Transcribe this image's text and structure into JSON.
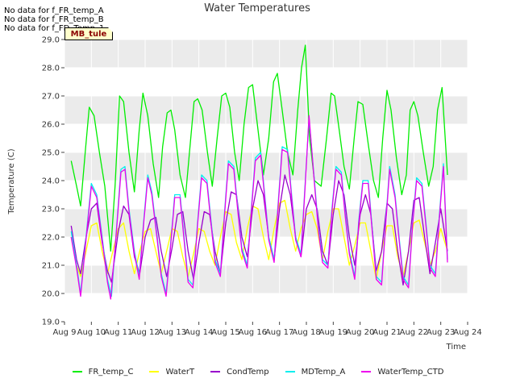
{
  "no_data_messages": [
    "No data for f_FR_temp_A",
    "No data for f_FR_temp_B",
    "No data for f_FD_Temp_1"
  ],
  "site_label": "MB_tule",
  "chart_data": {
    "type": "line",
    "title": "Water Temperatures",
    "xlabel": "Time",
    "ylabel": "Temperature (C)",
    "ylim": [
      19.0,
      29.0
    ],
    "xlim": [
      9,
      24
    ],
    "y_ticks": [
      19.0,
      20.0,
      21.0,
      22.0,
      23.0,
      24.0,
      25.0,
      26.0,
      27.0,
      28.0,
      29.0
    ],
    "x_ticks": [
      "Aug 9",
      "Aug 10",
      "Aug 11",
      "Aug 12",
      "Aug 13",
      "Aug 14",
      "Aug 15",
      "Aug 16",
      "Aug 17",
      "Aug 18",
      "Aug 19",
      "Aug 20",
      "Aug 21",
      "Aug 22",
      "Aug 23",
      "Aug 24"
    ],
    "x_unit": "day of August",
    "grid": true,
    "band_background": true,
    "legend_placement": "bottom",
    "series": [
      {
        "name": "FR_temp_C",
        "color": "#00ee00",
        "x": [
          9.25,
          9.45,
          9.6,
          9.78,
          9.92,
          10.1,
          10.3,
          10.5,
          10.72,
          10.88,
          11.05,
          11.2,
          11.4,
          11.6,
          11.78,
          11.92,
          12.1,
          12.3,
          12.5,
          12.65,
          12.82,
          12.96,
          13.1,
          13.3,
          13.5,
          13.65,
          13.82,
          13.96,
          14.12,
          14.32,
          14.5,
          14.68,
          14.85,
          15.0,
          15.15,
          15.33,
          15.5,
          15.68,
          15.85,
          16.0,
          16.2,
          16.4,
          16.6,
          16.78,
          16.92,
          17.1,
          17.3,
          17.5,
          17.68,
          17.82,
          17.96,
          18.12,
          18.3,
          18.55,
          18.75,
          18.92,
          19.05,
          19.22,
          19.4,
          19.6,
          19.78,
          19.92,
          20.1,
          20.3,
          20.5,
          20.68,
          20.84,
          21.0,
          21.15,
          21.35,
          21.55,
          21.72,
          21.86,
          22.0,
          22.15,
          22.35,
          22.55,
          22.72,
          22.88,
          23.05,
          23.25
        ],
        "values": [
          24.7,
          23.8,
          23.1,
          25.1,
          26.6,
          26.3,
          25.0,
          23.8,
          21.5,
          23.8,
          27.0,
          26.8,
          25.0,
          23.6,
          25.8,
          27.1,
          26.3,
          24.6,
          23.4,
          25.2,
          26.4,
          26.5,
          25.8,
          24.2,
          23.4,
          25.0,
          26.8,
          26.9,
          26.5,
          25.0,
          23.8,
          25.5,
          27.0,
          27.1,
          26.6,
          25.0,
          24.0,
          26.0,
          27.3,
          27.4,
          25.8,
          24.2,
          25.5,
          27.5,
          27.8,
          26.5,
          25.0,
          24.2,
          26.5,
          28.0,
          28.8,
          25.5,
          24.0,
          23.8,
          25.5,
          27.1,
          27.0,
          25.8,
          24.5,
          23.7,
          25.5,
          26.8,
          26.7,
          25.3,
          24.0,
          23.4,
          25.5,
          27.2,
          26.5,
          24.8,
          23.5,
          24.2,
          26.5,
          26.8,
          26.3,
          25.0,
          23.8,
          24.5,
          26.5,
          27.3,
          24.2
        ]
      },
      {
        "name": "WaterT",
        "color": "#ffff00",
        "x": [
          9.25,
          9.45,
          9.6,
          9.8,
          10.0,
          10.2,
          10.4,
          10.6,
          10.8,
          11.0,
          11.2,
          11.4,
          11.6,
          11.8,
          12.0,
          12.2,
          12.4,
          12.6,
          12.8,
          13.0,
          13.2,
          13.4,
          13.6,
          13.8,
          14.0,
          14.2,
          14.4,
          14.6,
          14.8,
          15.0,
          15.2,
          15.4,
          15.6,
          15.8,
          16.0,
          16.2,
          16.4,
          16.6,
          16.8,
          17.0,
          17.2,
          17.4,
          17.6,
          17.8,
          18.0,
          18.2,
          18.4,
          18.6,
          18.8,
          19.0,
          19.2,
          19.4,
          19.6,
          19.8,
          20.0,
          20.2,
          20.4,
          20.6,
          20.8,
          21.0,
          21.2,
          21.4,
          21.6,
          21.8,
          22.0,
          22.2,
          22.4,
          22.6,
          22.8,
          23.0,
          23.25
        ],
        "values": [
          22.0,
          21.0,
          20.6,
          21.5,
          22.4,
          22.5,
          21.5,
          20.7,
          21.5,
          22.3,
          22.5,
          21.5,
          20.7,
          21.5,
          22.2,
          22.3,
          21.5,
          20.7,
          21.5,
          22.3,
          22.2,
          21.3,
          20.6,
          21.4,
          22.3,
          22.2,
          21.5,
          21.0,
          22.0,
          22.9,
          22.8,
          21.8,
          21.2,
          22.3,
          23.1,
          23.0,
          22.0,
          21.2,
          22.3,
          23.2,
          23.3,
          22.3,
          21.5,
          22.3,
          22.8,
          22.9,
          22.3,
          21.2,
          22.2,
          23.0,
          23.0,
          22.0,
          21.0,
          21.7,
          22.5,
          22.5,
          21.5,
          20.5,
          21.5,
          22.4,
          22.4,
          21.3,
          20.6,
          21.5,
          22.5,
          22.6,
          21.8,
          21.0,
          21.5,
          22.3,
          21.5
        ]
      },
      {
        "name": "CondTemp",
        "color": "#9900cc",
        "x": [
          9.25,
          9.45,
          9.6,
          9.8,
          10.0,
          10.2,
          10.4,
          10.6,
          10.75,
          11.0,
          11.2,
          11.4,
          11.6,
          11.8,
          12.0,
          12.2,
          12.4,
          12.6,
          12.8,
          13.0,
          13.2,
          13.4,
          13.6,
          13.8,
          14.0,
          14.2,
          14.4,
          14.6,
          14.8,
          15.0,
          15.2,
          15.4,
          15.6,
          15.8,
          16.0,
          16.2,
          16.4,
          16.6,
          16.8,
          17.0,
          17.2,
          17.4,
          17.6,
          17.8,
          18.0,
          18.2,
          18.4,
          18.6,
          18.8,
          19.0,
          19.2,
          19.4,
          19.6,
          19.8,
          20.0,
          20.2,
          20.4,
          20.6,
          20.8,
          21.0,
          21.2,
          21.4,
          21.6,
          21.8,
          22.0,
          22.2,
          22.4,
          22.6,
          22.8,
          23.0,
          23.25
        ],
        "values": [
          22.4,
          21.2,
          20.7,
          22.0,
          23.0,
          23.2,
          21.8,
          20.8,
          20.4,
          22.2,
          23.1,
          22.8,
          21.3,
          20.7,
          22.0,
          22.6,
          22.7,
          21.5,
          20.6,
          21.6,
          22.8,
          22.9,
          21.5,
          20.5,
          21.8,
          22.9,
          22.8,
          21.5,
          20.7,
          22.5,
          23.6,
          23.5,
          22.0,
          21.3,
          23.0,
          24.0,
          23.5,
          22.0,
          21.2,
          23.0,
          24.2,
          23.5,
          22.0,
          21.3,
          23.0,
          23.5,
          23.0,
          21.5,
          21.0,
          22.8,
          24.0,
          23.5,
          22.0,
          21.0,
          22.8,
          23.5,
          22.8,
          20.8,
          21.5,
          23.2,
          23.0,
          21.5,
          20.3,
          21.5,
          23.3,
          23.4,
          22.0,
          20.7,
          21.8,
          23.0,
          21.5
        ]
      },
      {
        "name": "MDTemp_A",
        "color": "#00eeee",
        "x": [
          9.25,
          9.45,
          9.6,
          9.8,
          10.0,
          10.2,
          10.4,
          10.6,
          10.75,
          10.95,
          11.1,
          11.25,
          11.4,
          11.6,
          11.78,
          11.95,
          12.1,
          12.25,
          12.45,
          12.6,
          12.78,
          12.95,
          13.1,
          13.3,
          13.45,
          13.6,
          13.78,
          13.95,
          14.1,
          14.3,
          14.45,
          14.6,
          14.8,
          14.95,
          15.1,
          15.3,
          15.45,
          15.6,
          15.8,
          15.95,
          16.1,
          16.3,
          16.45,
          16.6,
          16.8,
          16.95,
          17.1,
          17.3,
          17.45,
          17.6,
          17.8,
          17.96,
          18.1,
          18.3,
          18.45,
          18.6,
          18.8,
          18.95,
          19.1,
          19.3,
          19.45,
          19.6,
          19.8,
          19.95,
          20.1,
          20.3,
          20.45,
          20.6,
          20.8,
          20.95,
          21.1,
          21.3,
          21.45,
          21.6,
          21.8,
          21.95,
          22.1,
          22.3,
          22.45,
          22.6,
          22.8,
          22.95,
          23.1,
          23.25
        ],
        "values": [
          22.2,
          21.0,
          20.0,
          22.0,
          23.9,
          23.5,
          22.0,
          20.5,
          19.9,
          22.5,
          24.4,
          24.5,
          23.0,
          21.5,
          20.6,
          22.6,
          24.2,
          23.6,
          22.0,
          20.7,
          20.0,
          21.8,
          23.5,
          23.5,
          22.0,
          20.5,
          20.3,
          22.5,
          24.2,
          24.0,
          22.6,
          21.2,
          20.7,
          22.8,
          24.7,
          24.5,
          23.0,
          21.6,
          21.0,
          23.0,
          24.8,
          25.0,
          23.5,
          22.0,
          21.2,
          23.2,
          25.2,
          25.1,
          23.5,
          22.0,
          21.4,
          24.0,
          26.2,
          24.0,
          22.3,
          21.2,
          21.0,
          23.0,
          24.5,
          24.3,
          22.8,
          21.5,
          20.6,
          22.6,
          24.0,
          24.0,
          22.3,
          20.6,
          20.4,
          22.5,
          24.5,
          23.5,
          22.0,
          20.6,
          20.3,
          22.5,
          24.1,
          23.9,
          22.5,
          21.0,
          20.7,
          22.8,
          24.6,
          21.2
        ]
      },
      {
        "name": "WaterTemp_CTD",
        "color": "#ee00ee",
        "x": [
          9.25,
          9.45,
          9.6,
          9.8,
          10.0,
          10.2,
          10.4,
          10.6,
          10.72,
          10.95,
          11.1,
          11.25,
          11.4,
          11.6,
          11.78,
          11.95,
          12.1,
          12.25,
          12.45,
          12.6,
          12.78,
          12.95,
          13.1,
          13.3,
          13.45,
          13.6,
          13.78,
          13.95,
          14.1,
          14.3,
          14.45,
          14.6,
          14.8,
          14.95,
          15.1,
          15.3,
          15.45,
          15.6,
          15.8,
          15.95,
          16.1,
          16.3,
          16.45,
          16.6,
          16.8,
          16.95,
          17.1,
          17.3,
          17.45,
          17.6,
          17.8,
          17.96,
          18.1,
          18.3,
          18.45,
          18.6,
          18.8,
          18.95,
          19.1,
          19.3,
          19.45,
          19.6,
          19.8,
          19.95,
          20.1,
          20.3,
          20.45,
          20.6,
          20.8,
          20.95,
          21.1,
          21.3,
          21.45,
          21.6,
          21.8,
          21.95,
          22.1,
          22.3,
          22.45,
          22.6,
          22.8,
          22.95,
          23.1,
          23.25
        ],
        "values": [
          22.0,
          20.9,
          19.9,
          21.9,
          23.8,
          23.4,
          21.9,
          20.4,
          19.8,
          22.4,
          24.3,
          24.4,
          22.9,
          21.4,
          20.5,
          22.5,
          24.1,
          23.5,
          21.9,
          20.6,
          19.9,
          21.7,
          23.4,
          23.4,
          21.9,
          20.4,
          20.2,
          22.4,
          24.1,
          23.9,
          22.5,
          21.1,
          20.6,
          22.7,
          24.6,
          24.4,
          22.9,
          21.5,
          20.9,
          22.9,
          24.7,
          24.9,
          23.4,
          21.9,
          21.1,
          23.1,
          25.1,
          25.0,
          23.4,
          21.9,
          21.3,
          23.9,
          26.3,
          23.9,
          22.2,
          21.1,
          20.9,
          22.9,
          24.4,
          24.2,
          22.7,
          21.4,
          20.5,
          22.5,
          23.9,
          23.9,
          22.2,
          20.5,
          20.3,
          22.4,
          24.4,
          23.4,
          21.9,
          20.5,
          20.2,
          22.4,
          24.0,
          23.8,
          22.4,
          20.9,
          20.6,
          22.7,
          24.5,
          21.1
        ]
      }
    ]
  }
}
